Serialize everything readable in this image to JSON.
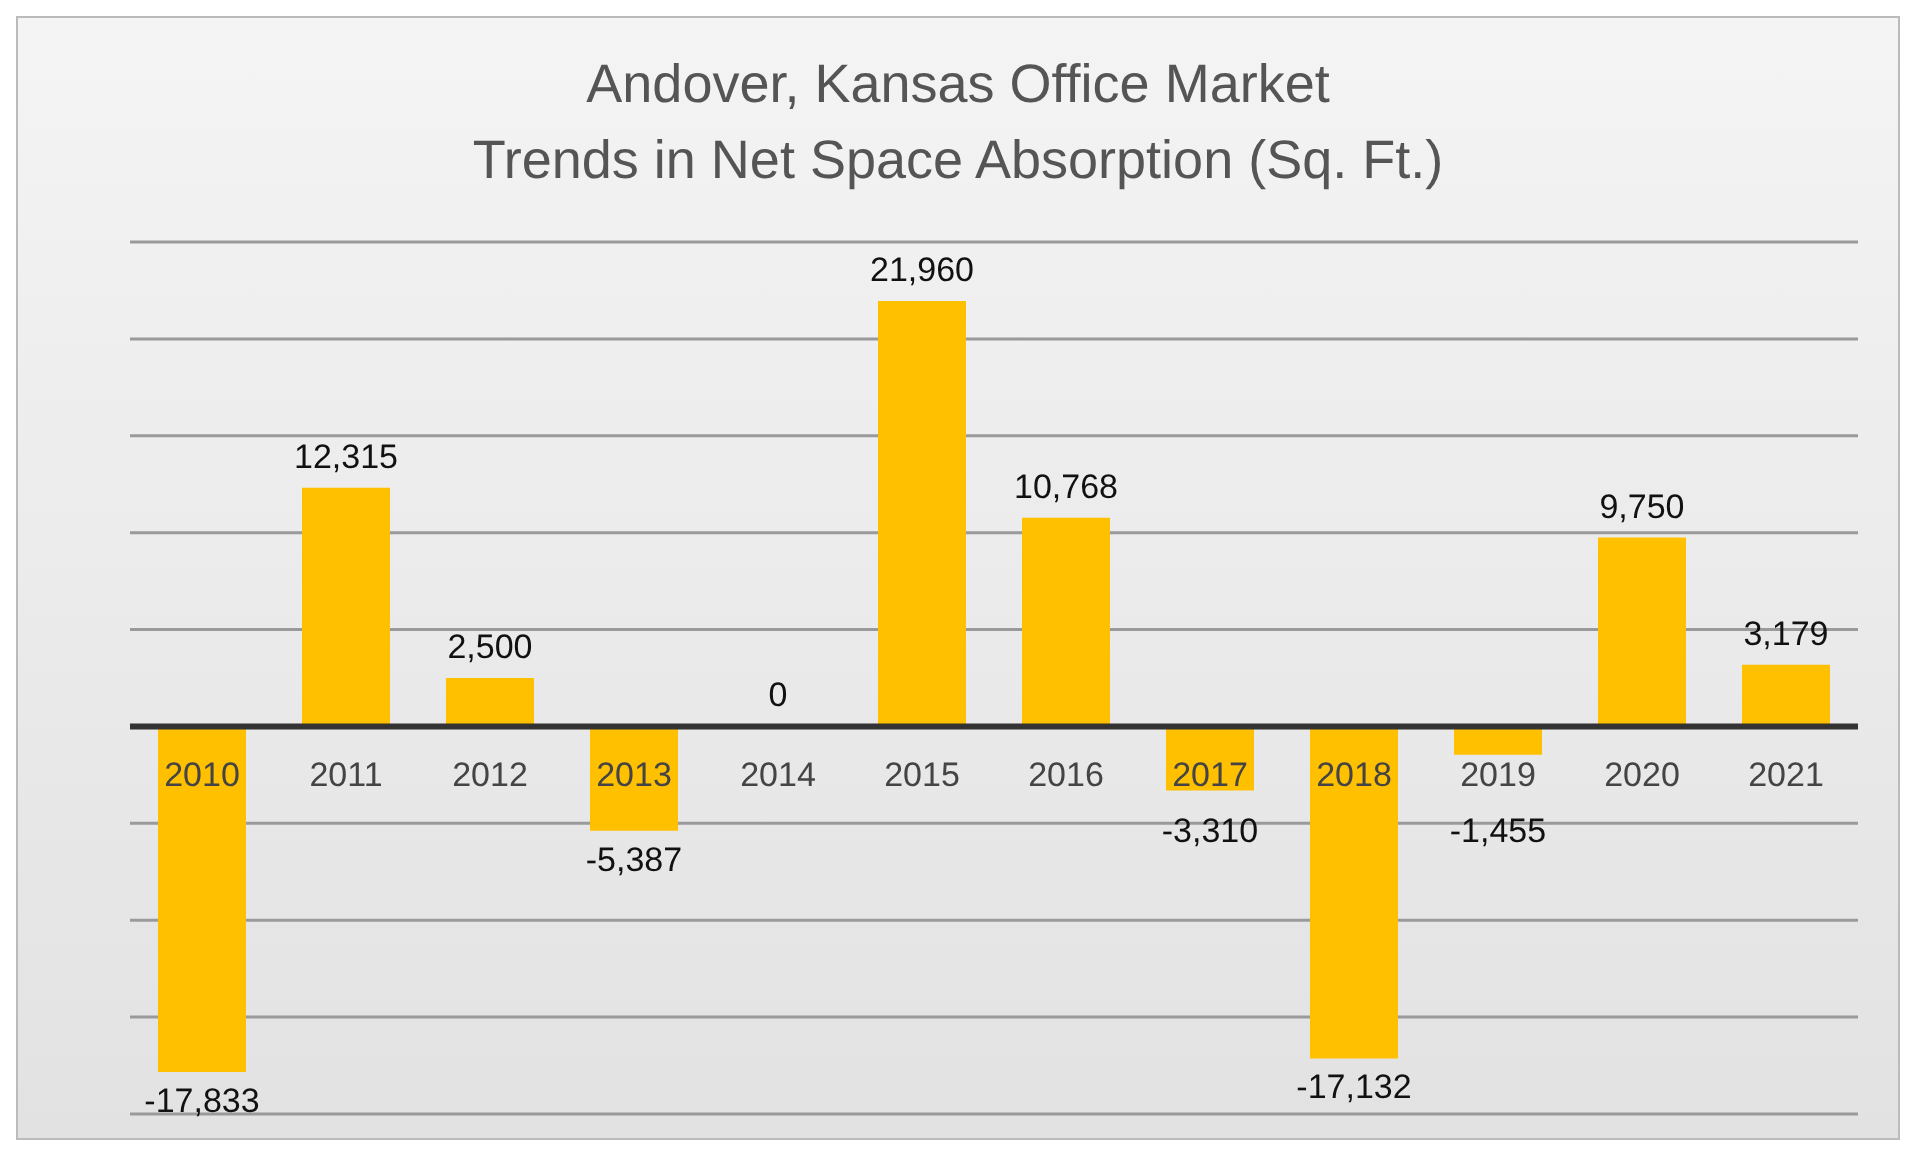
{
  "chart_data": {
    "type": "bar",
    "title": "Andover, Kansas Office Market",
    "subtitle": "Trends in Net Space Absorption (Sq. Ft.)",
    "categories": [
      "2010",
      "2011",
      "2012",
      "2013",
      "2014",
      "2015",
      "2016",
      "2017",
      "2018",
      "2019",
      "2020",
      "2021"
    ],
    "values": [
      -17833,
      12315,
      2500,
      -5387,
      0,
      21960,
      10768,
      -3310,
      -17132,
      -1455,
      9750,
      3179
    ],
    "value_labels": [
      "-17,833",
      "12,315",
      "2,500",
      "-5,387",
      "0",
      "21,960",
      "10,768",
      "-3,310",
      "-17,132",
      "-1,455",
      "9,750",
      "3,179"
    ],
    "color": "#ffc000",
    "grid": "y"
  }
}
